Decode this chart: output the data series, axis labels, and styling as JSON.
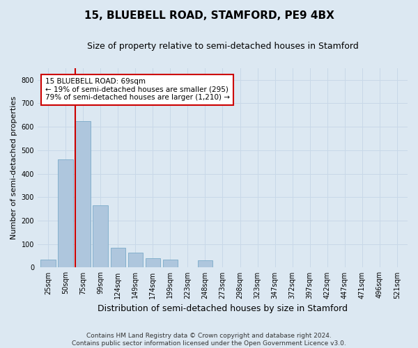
{
  "title": "15, BLUEBELL ROAD, STAMFORD, PE9 4BX",
  "subtitle": "Size of property relative to semi-detached houses in Stamford",
  "xlabel": "Distribution of semi-detached houses by size in Stamford",
  "ylabel": "Number of semi-detached properties",
  "footer_line1": "Contains HM Land Registry data © Crown copyright and database right 2024.",
  "footer_line2": "Contains public sector information licensed under the Open Government Licence v3.0.",
  "bin_labels": [
    "25sqm",
    "50sqm",
    "75sqm",
    "99sqm",
    "124sqm",
    "149sqm",
    "174sqm",
    "199sqm",
    "223sqm",
    "248sqm",
    "273sqm",
    "298sqm",
    "323sqm",
    "347sqm",
    "372sqm",
    "397sqm",
    "422sqm",
    "447sqm",
    "471sqm",
    "496sqm",
    "521sqm"
  ],
  "bar_values": [
    35,
    460,
    625,
    265,
    85,
    65,
    40,
    35,
    0,
    30,
    0,
    0,
    0,
    0,
    0,
    0,
    0,
    0,
    0,
    0,
    0
  ],
  "bar_color": "#aec6dd",
  "bar_edge_color": "#7aaac8",
  "grid_color": "#c8d8e8",
  "background_color": "#dce8f2",
  "red_line_color": "#cc0000",
  "annotation_text_line1": "15 BLUEBELL ROAD: 69sqm",
  "annotation_text_line2": "← 19% of semi-detached houses are smaller (295)",
  "annotation_text_line3": "79% of semi-detached houses are larger (1,210) →",
  "annotation_box_facecolor": "#ffffff",
  "annotation_box_edgecolor": "#cc0000",
  "ylim": [
    0,
    850
  ],
  "yticks": [
    0,
    100,
    200,
    300,
    400,
    500,
    600,
    700,
    800
  ],
  "title_fontsize": 11,
  "subtitle_fontsize": 9,
  "axis_label_fontsize": 8,
  "tick_fontsize": 7,
  "footer_fontsize": 6.5
}
